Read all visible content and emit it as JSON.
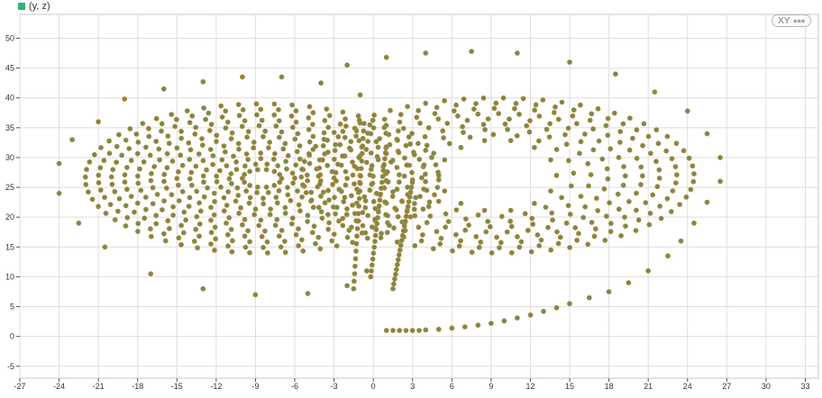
{
  "legend": {
    "label": "(y, z)",
    "color": "#2bb673"
  },
  "controls": {
    "mode_label": "XY",
    "more_icon": "●●●"
  },
  "colors": {
    "point_fill": "#6f8f4a",
    "point_stroke": "#d9803a",
    "grid": "#dedede",
    "axis": "#555555"
  },
  "chart_data": {
    "type": "scatter",
    "title": "",
    "xlabel": "",
    "ylabel": "",
    "series": [
      {
        "name": "(y, z)",
        "points": [
          [
            1,
            1
          ],
          [
            1.5,
            1
          ],
          [
            2,
            1
          ],
          [
            2.5,
            1
          ],
          [
            3,
            1
          ],
          [
            3.5,
            1
          ],
          [
            4,
            1.1
          ],
          [
            5,
            1.2
          ],
          [
            6,
            1.4
          ],
          [
            7,
            1.6
          ],
          [
            8,
            1.9
          ],
          [
            9,
            2.2
          ],
          [
            10,
            2.6
          ],
          [
            11,
            3.1
          ],
          [
            12,
            3.6
          ],
          [
            13,
            4.2
          ],
          [
            14,
            4.8
          ],
          [
            15,
            5.5
          ],
          [
            16.5,
            6.5
          ],
          [
            18,
            7.5
          ],
          [
            19.5,
            9
          ],
          [
            21,
            11
          ],
          [
            22.5,
            13.5
          ],
          [
            23.5,
            16
          ],
          [
            24.5,
            19
          ],
          [
            25.5,
            22.5
          ],
          [
            26.5,
            26
          ],
          [
            26.5,
            30
          ],
          [
            25.5,
            34
          ],
          [
            24,
            37.8
          ],
          [
            21.5,
            41
          ],
          [
            18.5,
            44
          ],
          [
            15,
            46
          ],
          [
            11,
            47.5
          ],
          [
            7.5,
            47.8
          ],
          [
            4,
            47.5
          ],
          [
            1,
            46.8
          ],
          [
            -2,
            45.5
          ],
          [
            -21,
            36
          ],
          [
            -19,
            39.8
          ],
          [
            -16,
            41.5
          ],
          [
            -13,
            42.7
          ],
          [
            -10,
            43.5
          ],
          [
            -7,
            43.5
          ],
          [
            -4,
            42.5
          ],
          [
            -1,
            40.5
          ],
          [
            -23,
            33
          ],
          [
            -24,
            29
          ],
          [
            -24,
            24
          ],
          [
            -22.5,
            19
          ],
          [
            -20.5,
            15
          ],
          [
            -17,
            10.5
          ],
          [
            -13,
            8
          ],
          [
            -9,
            7
          ],
          [
            -5,
            7.2
          ],
          [
            -2,
            8.5
          ],
          [
            -0.5,
            11
          ]
        ],
        "spirals": [
          {
            "cx": -8.5,
            "cy": 26.5,
            "rx_min": 1.5,
            "rx_max": 13.5,
            "ry_min": 1.5,
            "ry_max": 12.5,
            "rings": 13
          },
          {
            "cx": 9.5,
            "cy": 27,
            "rx_min": 4.5,
            "rx_max": 15,
            "ry_min": 6,
            "ry_max": 13,
            "rings": 9
          }
        ]
      }
    ],
    "xlim": [
      -27,
      34
    ],
    "ylim": [
      -7,
      54
    ],
    "xticks": [
      -27,
      -24,
      -21,
      -18,
      -15,
      -12,
      -9,
      -6,
      -3,
      0,
      3,
      6,
      9,
      12,
      15,
      18,
      21,
      24,
      27,
      30,
      33
    ],
    "yticks": [
      -5,
      0,
      5,
      10,
      15,
      20,
      25,
      30,
      35,
      40,
      45,
      50
    ],
    "grid": true,
    "legend_position": "top-left"
  }
}
